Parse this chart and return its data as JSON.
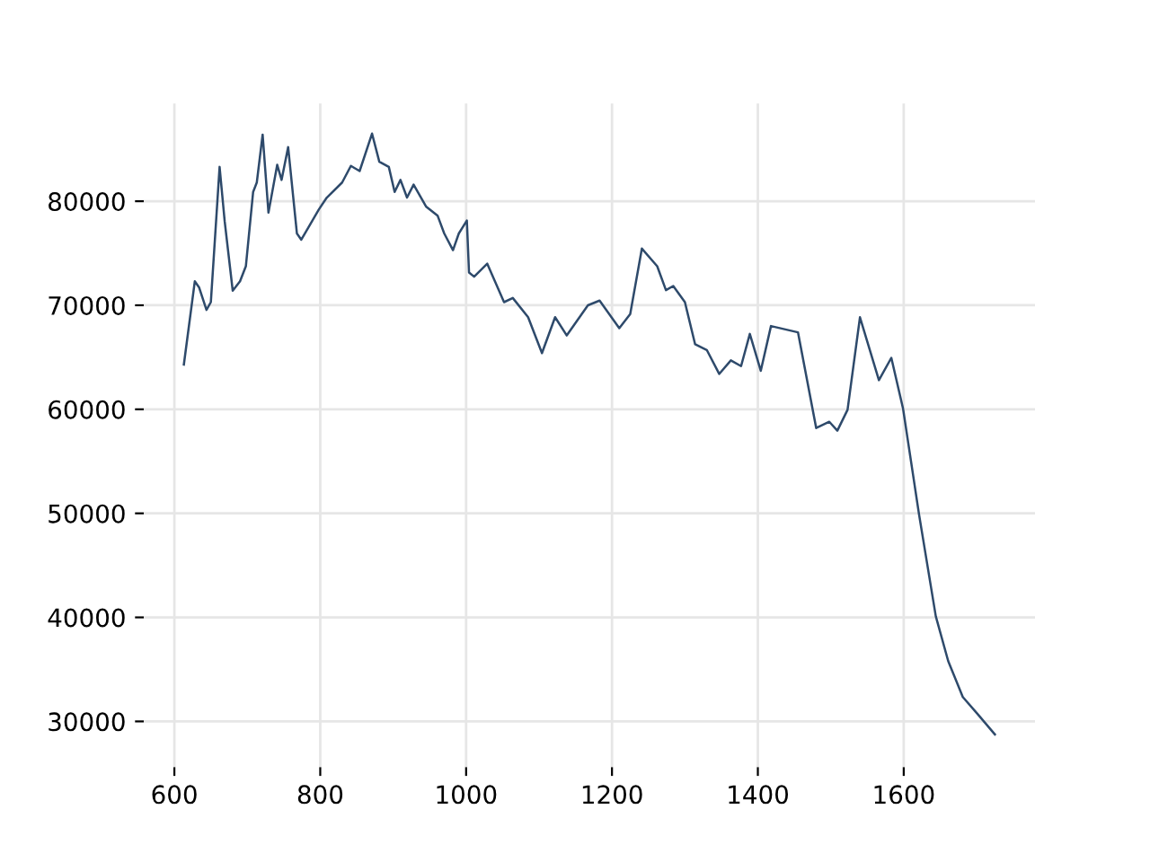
{
  "chart_data": {
    "type": "line",
    "xlim": [
      558,
      1780
    ],
    "ylim": [
      25600,
      89400
    ],
    "xticks": [
      600,
      800,
      1000,
      1200,
      1400,
      1600
    ],
    "yticks": [
      30000,
      40000,
      50000,
      60000,
      70000,
      80000
    ],
    "grid": true,
    "legend": false,
    "series": [
      {
        "color": "#2e4a6b",
        "x": [
          613,
          628,
          634,
          644,
          650,
          662,
          669,
          680,
          690,
          698,
          708,
          713,
          721,
          729,
          741,
          747,
          756,
          768,
          774,
          798,
          809,
          830,
          842,
          854,
          871,
          881,
          894,
          902,
          910,
          919,
          928,
          945,
          961,
          970,
          982,
          990,
          1001,
          1004,
          1011,
          1029,
          1052,
          1064,
          1085,
          1104,
          1122,
          1138,
          1167,
          1183,
          1210,
          1225,
          1241,
          1262,
          1274,
          1284,
          1300,
          1314,
          1330,
          1347,
          1363,
          1377,
          1389,
          1404,
          1418,
          1455,
          1480,
          1498,
          1509,
          1523,
          1540,
          1566,
          1583,
          1599,
          1621,
          1644,
          1661,
          1681,
          1702,
          1725
        ],
        "values": [
          64300,
          72300,
          71700,
          69550,
          70300,
          83300,
          78050,
          71400,
          72300,
          73750,
          80900,
          81800,
          86400,
          78900,
          83500,
          82050,
          85200,
          76900,
          76300,
          79200,
          80350,
          81800,
          83400,
          82900,
          86500,
          83800,
          83300,
          80900,
          82050,
          80350,
          81600,
          79500,
          78600,
          76900,
          75300,
          76900,
          78150,
          73150,
          72750,
          74000,
          70300,
          70700,
          68850,
          65400,
          68850,
          67100,
          70000,
          70450,
          67800,
          69150,
          75450,
          73750,
          71450,
          71850,
          70300,
          66250,
          65700,
          63400,
          64700,
          64150,
          67250,
          63700,
          68000,
          67400,
          58200,
          58800,
          57950,
          59950,
          68850,
          62800,
          64950,
          60100,
          49900,
          40100,
          35800,
          32350,
          30650,
          28750
        ]
      }
    ]
  }
}
